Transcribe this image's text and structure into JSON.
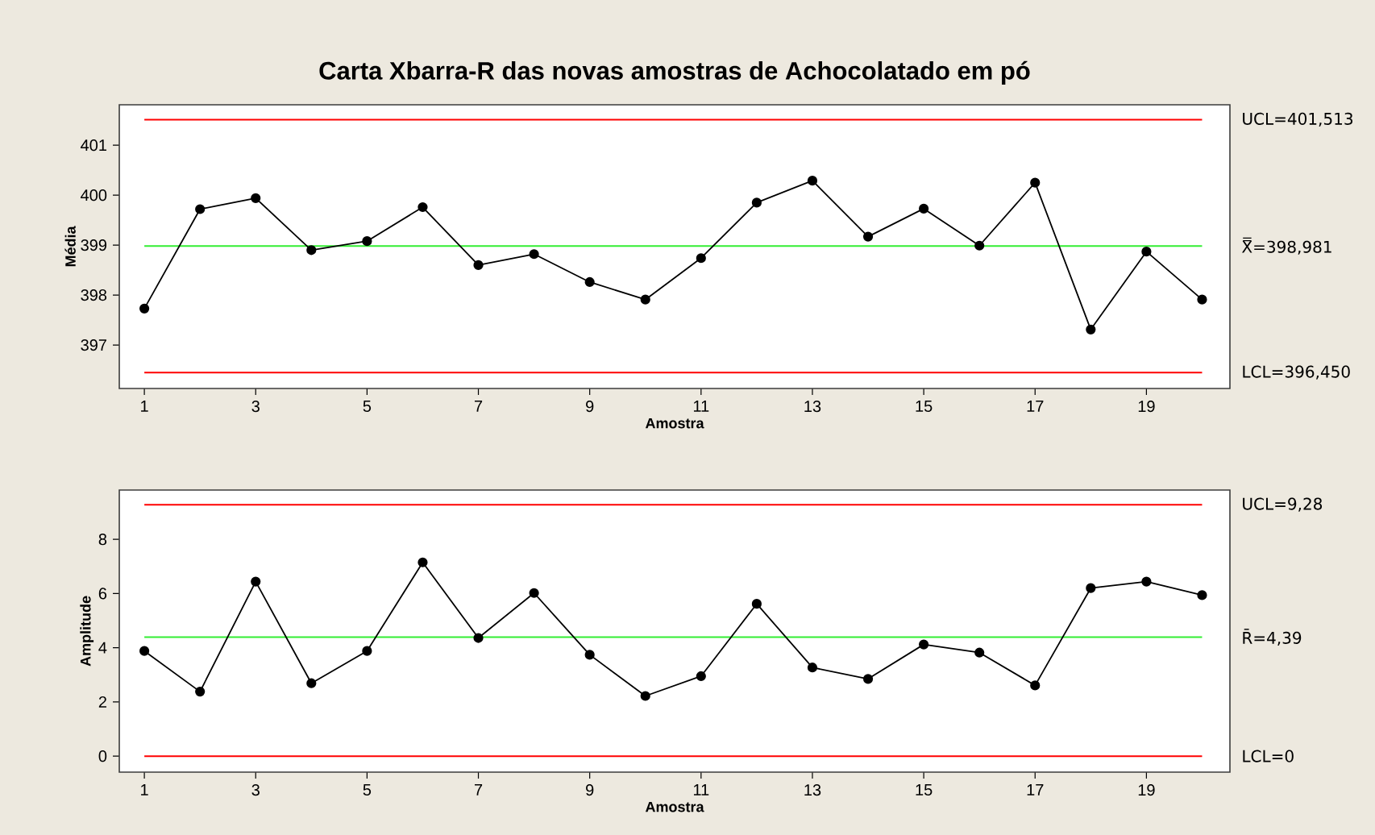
{
  "chart_data": [
    {
      "type": "line",
      "title": "Carta Xbarra-R das novas amostras de Achocolatado em pó",
      "xlabel": "Amostra",
      "ylabel": "Média",
      "x": [
        1,
        2,
        3,
        4,
        5,
        6,
        7,
        8,
        9,
        10,
        11,
        12,
        13,
        14,
        15,
        16,
        17,
        18,
        19,
        20
      ],
      "series": [
        {
          "color": "#000000",
          "values": [
            397.73,
            399.72,
            399.94,
            398.9,
            399.08,
            399.76,
            398.6,
            398.82,
            398.26,
            397.91,
            398.74,
            399.85,
            400.29,
            399.17,
            399.73,
            398.99,
            400.25,
            397.31,
            398.87,
            397.91
          ]
        }
      ],
      "marker": "circle",
      "line_style": "solid",
      "xlim": [
        0.55,
        20.5
      ],
      "ylim": [
        396.13,
        401.81
      ],
      "xticks": [
        1,
        3,
        5,
        7,
        9,
        11,
        13,
        15,
        17,
        19
      ],
      "yticks": [
        397,
        398,
        399,
        400,
        401
      ],
      "ref_lines": [
        {
          "axis": "y",
          "value": 401.513,
          "label": "UCL=401,513",
          "color": "#ff0000"
        },
        {
          "axis": "y",
          "value": 398.981,
          "label": "X̿=398,981",
          "color": "#33ee33"
        },
        {
          "axis": "y",
          "value": 396.45,
          "label": "LCL=396,450",
          "color": "#ff0000"
        }
      ]
    },
    {
      "type": "line",
      "xlabel": "Amostra",
      "ylabel": "Amplitude",
      "x": [
        1,
        2,
        3,
        4,
        5,
        6,
        7,
        8,
        9,
        10,
        11,
        12,
        13,
        14,
        15,
        16,
        17,
        18,
        19,
        20
      ],
      "series": [
        {
          "color": "#000000",
          "values": [
            3.88,
            2.38,
            6.44,
            2.69,
            3.88,
            7.15,
            4.36,
            6.02,
            3.74,
            2.22,
            2.95,
            5.62,
            3.27,
            2.85,
            4.12,
            3.82,
            2.61,
            6.2,
            6.44,
            5.94
          ]
        }
      ],
      "marker": "circle",
      "line_style": "solid",
      "xlim": [
        0.55,
        20.5
      ],
      "ylim": [
        -0.59,
        9.82
      ],
      "xticks": [
        1,
        3,
        5,
        7,
        9,
        11,
        13,
        15,
        17,
        19
      ],
      "yticks": [
        0,
        2,
        4,
        6,
        8
      ],
      "ref_lines": [
        {
          "axis": "y",
          "value": 9.28,
          "label": "UCL=9,28",
          "color": "#ff0000"
        },
        {
          "axis": "y",
          "value": 4.39,
          "label": "R̄=4,39",
          "color": "#33ee33"
        },
        {
          "axis": "y",
          "value": 0,
          "label": "LCL=0",
          "color": "#ff0000"
        }
      ]
    }
  ]
}
